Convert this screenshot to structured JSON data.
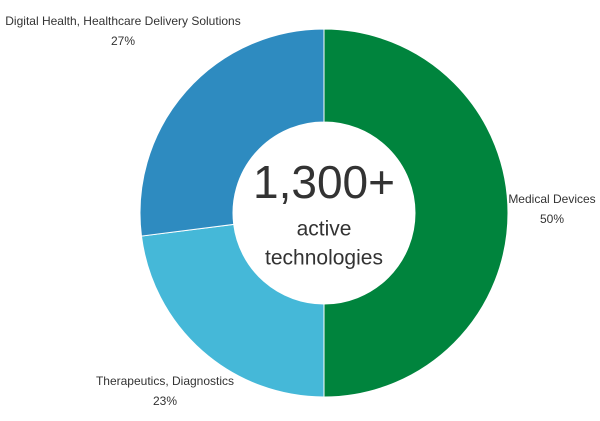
{
  "chart_data": {
    "type": "donut",
    "categories": [
      "Medical Devices",
      "Therapeutics, Diagnostics",
      "Digital Health, Healthcare Delivery Solutions"
    ],
    "values": [
      50,
      23,
      27
    ],
    "value_labels": [
      "50%",
      "23%",
      "27%"
    ],
    "colors": [
      "#00843d",
      "#45b8d8",
      "#2e8bc0"
    ],
    "center_text": {
      "headline": "1,300+",
      "line1": "active",
      "line2": "technologies"
    }
  }
}
